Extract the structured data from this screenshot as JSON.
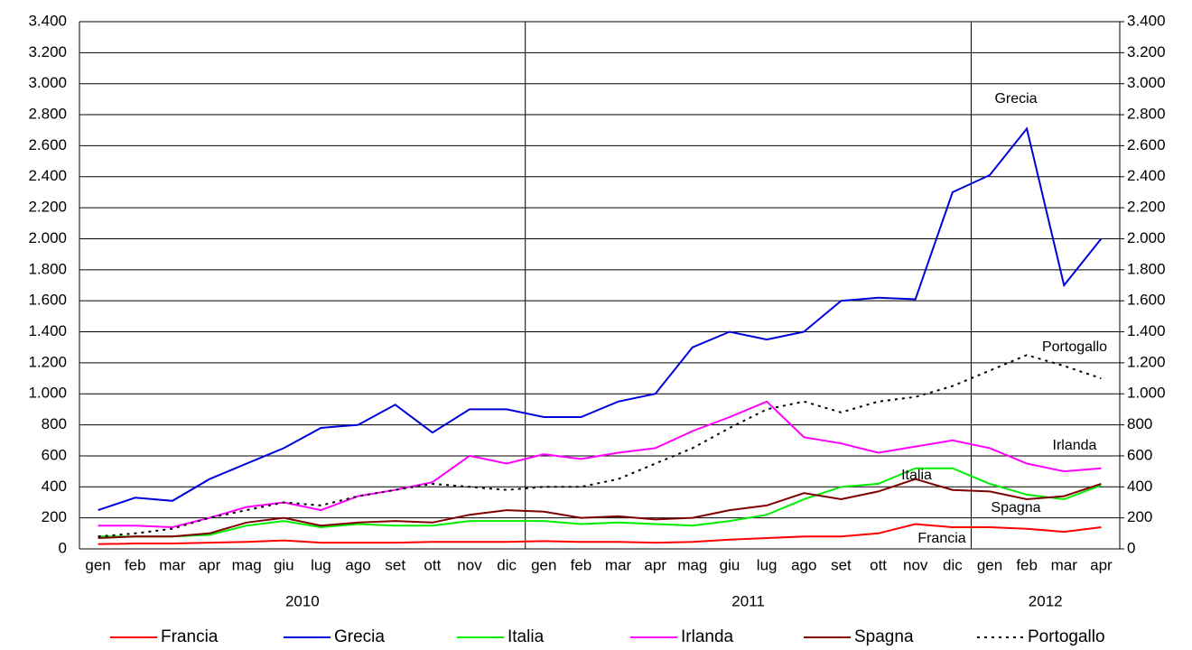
{
  "chart_data": {
    "type": "line",
    "categories": [
      "gen",
      "feb",
      "mar",
      "apr",
      "mag",
      "giu",
      "lug",
      "ago",
      "set",
      "ott",
      "nov",
      "dic",
      "gen",
      "feb",
      "mar",
      "apr",
      "mag",
      "giu",
      "lug",
      "ago",
      "set",
      "ott",
      "nov",
      "dic",
      "gen",
      "feb",
      "mar",
      "apr"
    ],
    "years": [
      "2010",
      "2011",
      "2012"
    ],
    "annotations": [
      "Grecia",
      "Portogallo",
      "Irlanda",
      "Italia",
      "Spagna",
      "Francia"
    ],
    "ylim": [
      0,
      3400
    ],
    "yticks": [
      0,
      200,
      400,
      600,
      800,
      {
        "value": 1000,
        "label": "1.000"
      },
      {
        "value": 1200,
        "label": "1.200"
      },
      {
        "value": 1400,
        "label": "1.400"
      },
      {
        "value": 1600,
        "label": "1.600"
      },
      {
        "value": 1800,
        "label": "1.800"
      },
      {
        "value": 2000,
        "label": "2.000"
      },
      {
        "value": 2200,
        "label": "2.200"
      },
      {
        "value": 2400,
        "label": "2.400"
      },
      {
        "value": 2600,
        "label": "2.600"
      },
      {
        "value": 2800,
        "label": "2.800"
      },
      {
        "value": 3000,
        "label": "3.000"
      },
      {
        "value": 3200,
        "label": "3.200"
      },
      {
        "value": 3400,
        "label": "3.400"
      }
    ],
    "y2lim": [
      0,
      3400
    ],
    "y2ticks": [
      0,
      200,
      400,
      600,
      800,
      {
        "value": 1000,
        "label": "1.000"
      },
      {
        "value": 1200,
        "label": "1.200"
      },
      {
        "value": 1400,
        "label": "1.400"
      },
      {
        "value": 1600,
        "label": "1.600"
      },
      {
        "value": 1800,
        "label": "1.800"
      },
      {
        "value": 2000,
        "label": "2.000"
      },
      {
        "value": 2200,
        "label": "2.200"
      },
      {
        "value": 2400,
        "label": "2.400"
      },
      {
        "value": 2600,
        "label": "2.600"
      },
      {
        "value": 2800,
        "label": "2.800"
      },
      {
        "value": 3000,
        "label": "3.000"
      },
      {
        "value": 3200,
        "label": "3.200"
      },
      {
        "value": 3400,
        "label": "3.400"
      }
    ],
    "grid": true,
    "series": [
      {
        "name": "Francia",
        "color": "#ff0000",
        "dashed": false,
        "values": [
          30,
          35,
          35,
          40,
          45,
          55,
          40,
          40,
          40,
          45,
          45,
          45,
          50,
          45,
          45,
          40,
          45,
          60,
          70,
          80,
          80,
          100,
          160,
          140,
          140,
          130,
          110,
          140
        ]
      },
      {
        "name": "Grecia",
        "color": "#0000dd",
        "dashed": false,
        "values": [
          250,
          330,
          310,
          450,
          550,
          650,
          780,
          800,
          930,
          750,
          900,
          900,
          850,
          850,
          950,
          1000,
          1300,
          1400,
          1350,
          1400,
          1600,
          1620,
          1610,
          2300,
          2410,
          2710,
          1700,
          2000
        ]
      },
      {
        "name": "Italia",
        "color": "#00ee00",
        "dashed": false,
        "values": [
          80,
          80,
          80,
          90,
          150,
          180,
          140,
          160,
          150,
          150,
          180,
          180,
          180,
          160,
          170,
          160,
          150,
          180,
          220,
          320,
          400,
          420,
          520,
          520,
          420,
          350,
          320,
          410
        ]
      },
      {
        "name": "Irlanda",
        "color": "#ff00ff",
        "dashed": false,
        "values": [
          150,
          150,
          140,
          200,
          270,
          300,
          250,
          340,
          380,
          430,
          600,
          550,
          610,
          580,
          620,
          650,
          760,
          850,
          950,
          720,
          680,
          620,
          660,
          700,
          650,
          550,
          500,
          520
        ]
      },
      {
        "name": "Spagna",
        "color": "#800000",
        "dashed": false,
        "values": [
          70,
          80,
          80,
          100,
          170,
          200,
          150,
          170,
          180,
          170,
          220,
          250,
          240,
          200,
          210,
          190,
          200,
          250,
          280,
          360,
          320,
          370,
          450,
          380,
          370,
          320,
          340,
          420
        ]
      },
      {
        "name": "Portogallo",
        "color": "#000000",
        "dashed": true,
        "values": [
          80,
          100,
          130,
          200,
          250,
          300,
          280,
          340,
          380,
          420,
          400,
          380,
          400,
          400,
          450,
          550,
          650,
          780,
          900,
          950,
          880,
          950,
          980,
          1050,
          1150,
          1250,
          1180,
          1100
        ]
      }
    ]
  }
}
